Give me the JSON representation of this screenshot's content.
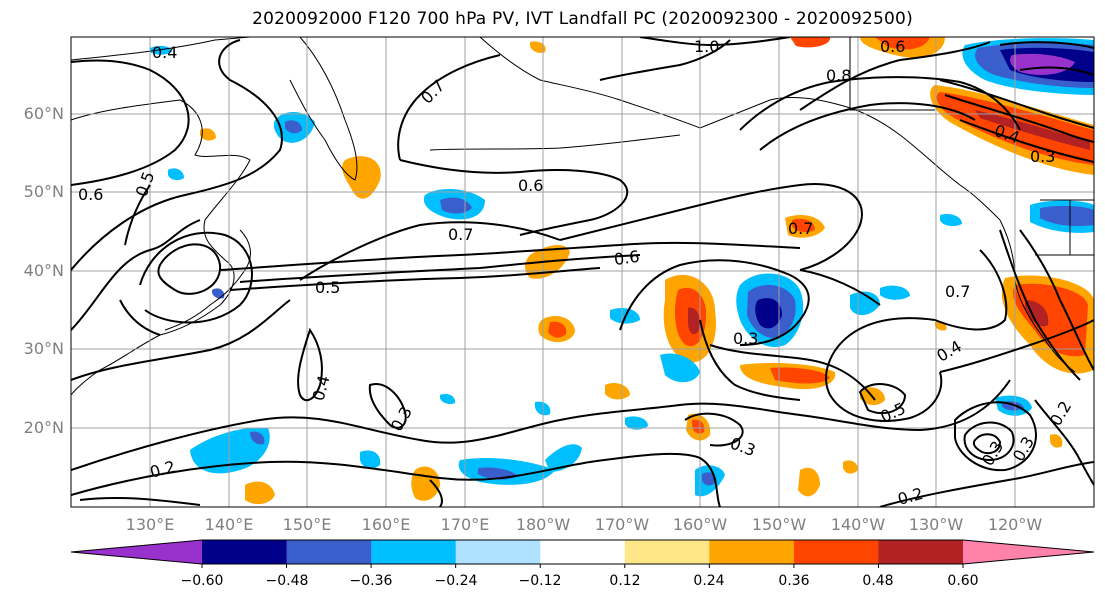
{
  "title": "2020092000 F120 700 hPa PV, IVT Landfall PC (2020092300 - 2020092500)",
  "lat_labels": [
    "60°N",
    "50°N",
    "40°N",
    "30°N",
    "20°N"
  ],
  "lon_labels": [
    "130°E",
    "140°E",
    "150°E",
    "160°E",
    "170°E",
    "180°W",
    "170°W",
    "160°W",
    "150°W",
    "140°W",
    "130°W",
    "120°W"
  ],
  "contour_labels": [
    "0.4",
    "1.0",
    "0.7",
    "0.8",
    "0.6",
    "0.5",
    "0.6",
    "0.7",
    "0.4",
    "0.3",
    "0.7",
    "0.6",
    "0.5",
    "0.3",
    "0.7",
    "0.4",
    "0.3",
    "0.5",
    "0.3",
    "0.2",
    "0.2",
    "0.3",
    "0.3",
    "0.4",
    "0.2",
    "0.6"
  ],
  "colorbar": {
    "ticks": [
      "−0.60",
      "−0.48",
      "−0.36",
      "−0.24",
      "−0.12",
      "0.12",
      "0.24",
      "0.36",
      "0.48",
      "0.60"
    ],
    "colors": [
      "#9932cc",
      "#00008b",
      "#3a5fcd",
      "#00bfff",
      "#b0e2ff",
      "#ffffff",
      "#ffe787",
      "#ffa500",
      "#ff4500",
      "#b22222",
      "#ff82ab"
    ]
  }
}
